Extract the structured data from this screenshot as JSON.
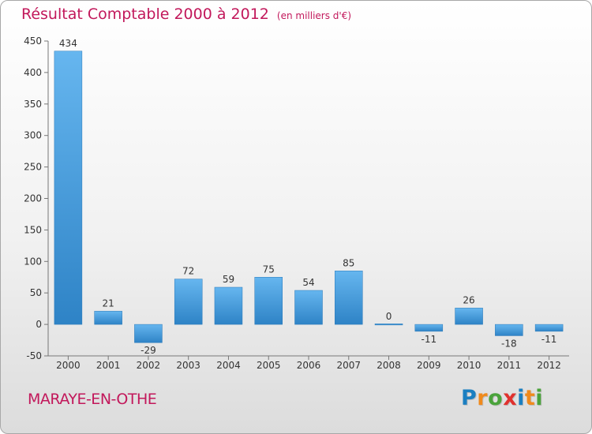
{
  "chart_data": {
    "type": "bar",
    "title": "Résultat Comptable 2000 à 2012",
    "subtitle": "(en milliers d'€)",
    "categories": [
      "2000",
      "2001",
      "2002",
      "2003",
      "2004",
      "2005",
      "2006",
      "2007",
      "2008",
      "2009",
      "2010",
      "2011",
      "2012"
    ],
    "values": [
      434,
      21,
      -29,
      72,
      59,
      75,
      54,
      85,
      0,
      -11,
      26,
      -18,
      -11
    ],
    "value_labels": [
      "434",
      "21",
      "-29",
      "72",
      "59",
      "75",
      "54",
      "85",
      "0",
      "-11",
      "26",
      "-18",
      "-11"
    ],
    "ylim": [
      -50,
      450
    ],
    "yticks": [
      -50,
      0,
      50,
      100,
      150,
      200,
      250,
      300,
      350,
      400,
      450
    ],
    "ytick_labels": [
      "-50",
      "0",
      "50",
      "100",
      "150",
      "200",
      "250",
      "300",
      "350",
      "400",
      "450"
    ],
    "grid": false,
    "xlabel": "",
    "ylabel": "",
    "bar_color_light": "#66b6ef",
    "bar_color_dark": "#2e83c6"
  },
  "location": "MARAYE-EN-OTHE",
  "logo": {
    "text": "Proxiti",
    "letters": [
      "P",
      "r",
      "o",
      "x",
      "i",
      "t",
      "i"
    ],
    "colors": [
      "#1b7fc1",
      "#f08a1c",
      "#4aa33b",
      "#e0312e",
      "#1b7fc1",
      "#f08a1c",
      "#4aa33b"
    ]
  },
  "colors": {
    "accent": "#c2185b",
    "axis": "#777777"
  }
}
